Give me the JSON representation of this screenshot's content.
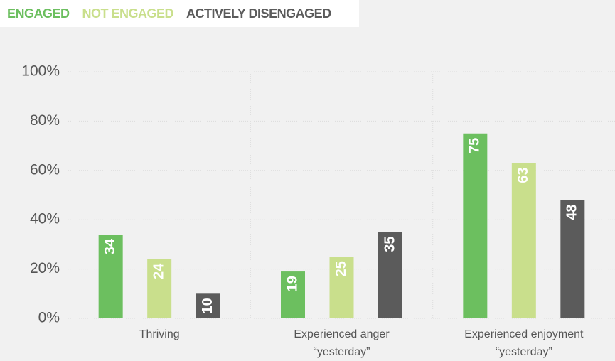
{
  "chart_data": {
    "type": "bar",
    "categories": [
      "Thriving",
      "Experienced anger\n“yesterday”",
      "Experienced enjoyment\n“yesterday”"
    ],
    "series": [
      {
        "name": "ENGAGED",
        "color": "#6cbf5f",
        "values": [
          34,
          19,
          75
        ]
      },
      {
        "name": "NOT ENGAGED",
        "color": "#c9df8c",
        "values": [
          24,
          25,
          63
        ]
      },
      {
        "name": "ACTIVELY DISENGAGED",
        "color": "#5b5b5b",
        "values": [
          10,
          35,
          48
        ]
      }
    ],
    "ylim": [
      0,
      100
    ],
    "yticks": [
      {
        "value": 0,
        "label": "0%"
      },
      {
        "value": 20,
        "label": "20%"
      },
      {
        "value": 40,
        "label": "40%"
      },
      {
        "value": 60,
        "label": "60%"
      },
      {
        "value": 80,
        "label": "80%"
      },
      {
        "value": 100,
        "label": "100%"
      }
    ],
    "grid": true
  }
}
